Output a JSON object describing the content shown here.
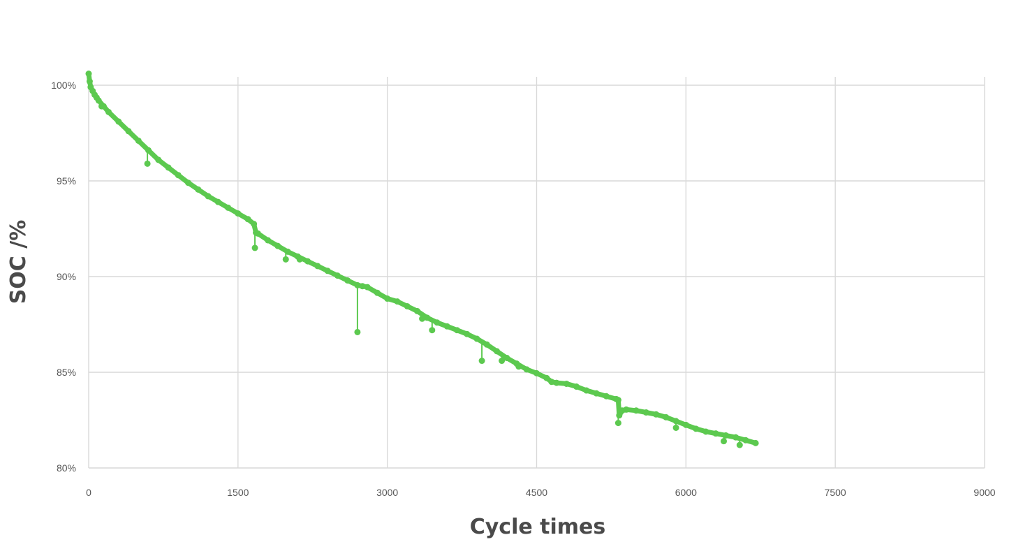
{
  "chart_data": {
    "type": "scatter",
    "title": "",
    "xlabel": "Cycle times",
    "ylabel": "SOC /%",
    "xlim": [
      0,
      9000
    ],
    "ylim": [
      80,
      100
    ],
    "x_ticks": [
      0,
      1500,
      3000,
      4500,
      6000,
      7500,
      9000
    ],
    "x_tick_labels": [
      "0",
      "1500",
      "3000",
      "4500",
      "6000",
      "7500",
      "9000"
    ],
    "y_ticks": [
      80,
      85,
      90,
      95,
      100
    ],
    "y_tick_labels": [
      "80%",
      "85%",
      "90%",
      "95%",
      "100%"
    ],
    "grid": true,
    "legend": "none",
    "series_color": "#5cc94f",
    "series": [
      {
        "points": [
          [
            0,
            100.6
          ],
          [
            10,
            100.2
          ],
          [
            20,
            99.9
          ],
          [
            40,
            99.7
          ],
          [
            60,
            99.5
          ],
          [
            80,
            99.35
          ],
          [
            100,
            99.2
          ],
          [
            150,
            98.9
          ],
          [
            200,
            98.6
          ],
          [
            300,
            98.1
          ],
          [
            400,
            97.6
          ],
          [
            500,
            97.1
          ],
          [
            600,
            96.6
          ],
          [
            700,
            96.1
          ],
          [
            800,
            95.7
          ],
          [
            900,
            95.3
          ],
          [
            1000,
            94.9
          ],
          [
            1100,
            94.55
          ],
          [
            1200,
            94.2
          ],
          [
            1300,
            93.9
          ],
          [
            1400,
            93.6
          ],
          [
            1500,
            93.3
          ],
          [
            1600,
            93.0
          ],
          [
            1660,
            92.75
          ],
          [
            1680,
            92.3
          ],
          [
            1700,
            92.25
          ],
          [
            1800,
            91.9
          ],
          [
            1900,
            91.6
          ],
          [
            2000,
            91.3
          ],
          [
            2100,
            91.05
          ],
          [
            2200,
            90.8
          ],
          [
            2300,
            90.55
          ],
          [
            2400,
            90.3
          ],
          [
            2500,
            90.05
          ],
          [
            2600,
            89.8
          ],
          [
            2700,
            89.55
          ],
          [
            2750,
            89.5
          ],
          [
            2800,
            89.45
          ],
          [
            2900,
            89.15
          ],
          [
            3000,
            88.85
          ],
          [
            3100,
            88.7
          ],
          [
            3200,
            88.45
          ],
          [
            3300,
            88.2
          ],
          [
            3400,
            87.85
          ],
          [
            3500,
            87.6
          ],
          [
            3600,
            87.4
          ],
          [
            3700,
            87.2
          ],
          [
            3800,
            87.0
          ],
          [
            3900,
            86.75
          ],
          [
            4000,
            86.45
          ],
          [
            4100,
            86.1
          ],
          [
            4200,
            85.75
          ],
          [
            4300,
            85.45
          ],
          [
            4400,
            85.15
          ],
          [
            4500,
            84.95
          ],
          [
            4600,
            84.7
          ],
          [
            4650,
            84.5
          ],
          [
            4700,
            84.45
          ],
          [
            4800,
            84.4
          ],
          [
            4900,
            84.25
          ],
          [
            5000,
            84.05
          ],
          [
            5100,
            83.9
          ],
          [
            5200,
            83.75
          ],
          [
            5300,
            83.6
          ],
          [
            5320,
            83.55
          ],
          [
            5330,
            82.75
          ],
          [
            5360,
            83.0
          ],
          [
            5400,
            83.05
          ],
          [
            5500,
            83.0
          ],
          [
            5600,
            82.9
          ],
          [
            5700,
            82.8
          ],
          [
            5800,
            82.65
          ],
          [
            5900,
            82.45
          ],
          [
            6000,
            82.25
          ],
          [
            6100,
            82.05
          ],
          [
            6200,
            81.9
          ],
          [
            6300,
            81.8
          ],
          [
            6400,
            81.7
          ],
          [
            6500,
            81.6
          ],
          [
            6600,
            81.45
          ],
          [
            6700,
            81.3
          ]
        ],
        "outliers": [
          [
            2700,
            87.1
          ],
          [
            1670,
            91.5
          ],
          [
            1980,
            90.9
          ],
          [
            2120,
            90.9
          ],
          [
            590,
            95.9
          ],
          [
            3450,
            87.2
          ],
          [
            3350,
            87.8
          ],
          [
            3950,
            85.6
          ],
          [
            4150,
            85.6
          ],
          [
            4320,
            85.3
          ],
          [
            5320,
            82.35
          ],
          [
            5900,
            82.1
          ],
          [
            6380,
            81.4
          ],
          [
            6540,
            81.2
          ],
          [
            130,
            98.9
          ]
        ]
      }
    ]
  }
}
